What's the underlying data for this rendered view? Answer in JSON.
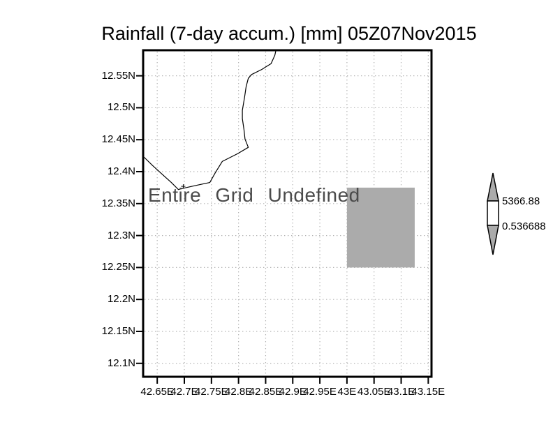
{
  "title": "Rainfall (7-day accum.) [mm] 05Z07Nov2015",
  "annotation": "Entire Grid Undefined",
  "colorbar": {
    "max_label": "5366.88",
    "min_label": "0.536688",
    "max": 5366.88,
    "min": 0.536688,
    "arrow_fill": "#ababab",
    "box_fill": "#ffffff",
    "position": "right"
  },
  "chart_data": {
    "type": "heatmap",
    "title": "Rainfall (7-day accum.) [mm] 05Z07Nov2015",
    "xlabel": "",
    "ylabel": "",
    "annotation": "Entire Grid Undefined",
    "grid": "dotted",
    "grid_color": "#b2b2b2",
    "frame_color": "#000000",
    "xlim": [
      42.624,
      43.156
    ],
    "ylim": [
      12.079,
      12.59
    ],
    "x_ticks": {
      "values": [
        42.65,
        42.7,
        42.75,
        42.8,
        42.85,
        42.9,
        42.95,
        43.0,
        43.05,
        43.1,
        43.15
      ],
      "labels": [
        "42.65E",
        "42.7E",
        "42.75E",
        "42.8E",
        "42.85E",
        "42.9E",
        "42.95E",
        "43E",
        "43.05E",
        "43.1E",
        "43.15E"
      ]
    },
    "y_ticks": {
      "values": [
        12.55,
        12.5,
        12.45,
        12.4,
        12.35,
        12.3,
        12.25,
        12.2,
        12.15,
        12.1
      ],
      "labels": [
        "12.55N",
        "12.5N",
        "12.45N",
        "12.4N",
        "12.35N",
        "12.3N",
        "12.25N",
        "12.2N",
        "12.15N",
        "12.1N"
      ]
    },
    "shaded_region": {
      "lon_min": 43.0,
      "lon_max": 43.125,
      "lat_min": 12.25,
      "lat_max": 12.375,
      "color": "#ababab"
    },
    "coastline_color": "#000000",
    "coastline": [
      [
        42.869,
        12.59
      ],
      [
        42.867,
        12.582
      ],
      [
        42.86,
        12.569
      ],
      [
        42.843,
        12.56
      ],
      [
        42.824,
        12.552
      ],
      [
        42.818,
        12.546
      ],
      [
        42.814,
        12.533
      ],
      [
        42.811,
        12.516
      ],
      [
        42.807,
        12.496
      ],
      [
        42.807,
        12.483
      ],
      [
        42.81,
        12.466
      ],
      [
        42.812,
        12.451
      ],
      [
        42.818,
        12.438
      ],
      [
        42.798,
        12.428
      ],
      [
        42.77,
        12.416
      ],
      [
        42.757,
        12.398
      ],
      [
        42.747,
        12.383
      ],
      [
        42.725,
        12.379
      ],
      [
        42.698,
        12.374
      ],
      [
        42.689,
        12.372
      ],
      [
        42.676,
        12.383
      ],
      [
        42.659,
        12.396
      ],
      [
        42.641,
        12.41
      ],
      [
        42.624,
        12.424
      ]
    ],
    "islet_marker": {
      "lon": 42.698,
      "lat": 12.377
    }
  }
}
